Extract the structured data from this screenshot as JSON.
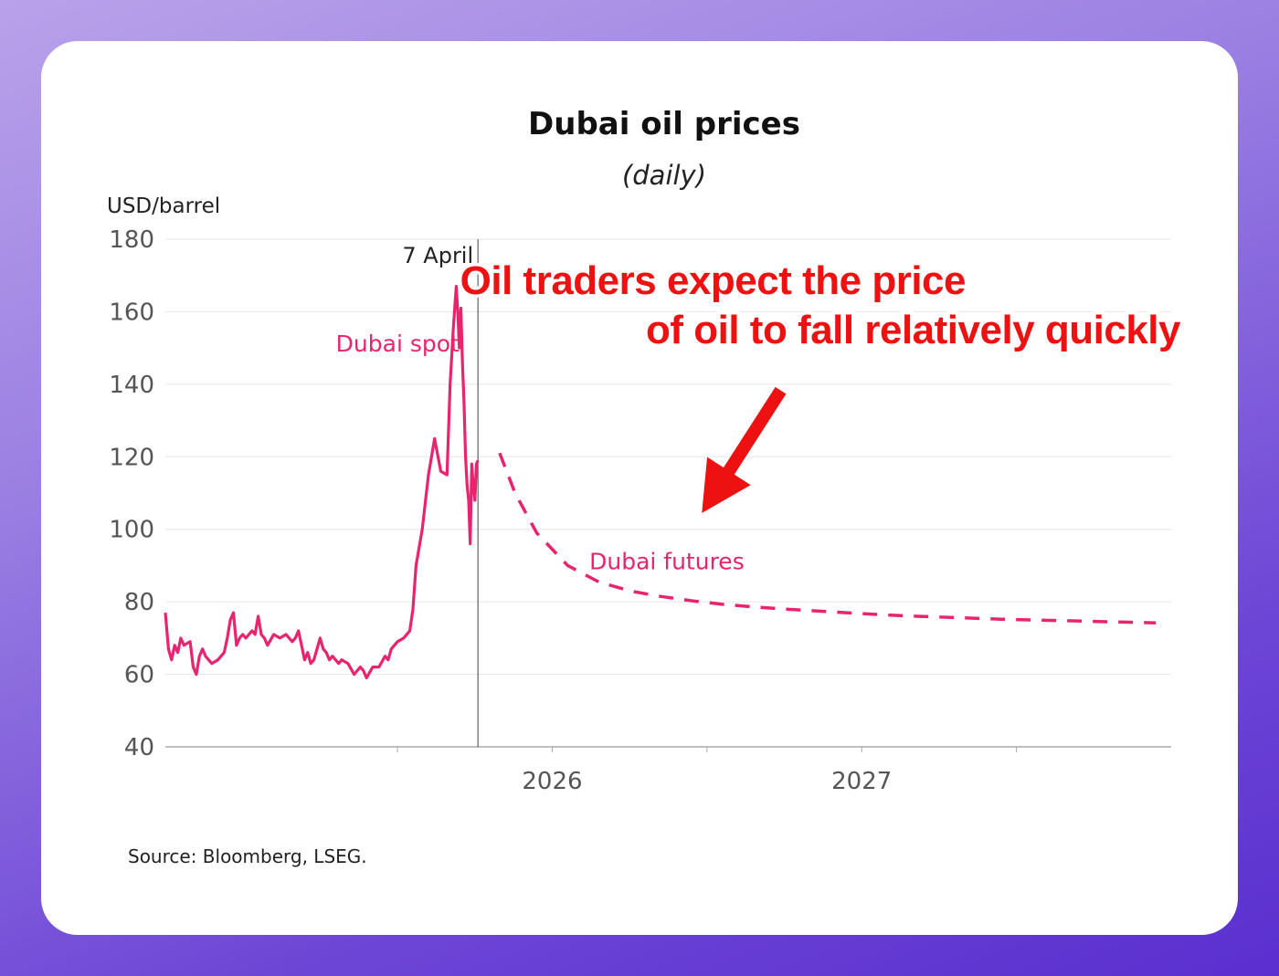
{
  "chart_data": {
    "type": "line",
    "title": "Dubai oil prices",
    "subtitle": "(daily)",
    "ylabel": "USD/barrel",
    "ylim": [
      40,
      180
    ],
    "yticks": [
      40,
      60,
      80,
      100,
      120,
      140,
      160,
      180
    ],
    "xlim": [
      2024.75,
      2028.0
    ],
    "xticks": [
      {
        "value": 2025.5,
        "label": ""
      },
      {
        "value": 2026.0,
        "label": "2026"
      },
      {
        "value": 2026.5,
        "label": ""
      },
      {
        "value": 2027.0,
        "label": "2027"
      },
      {
        "value": 2027.5,
        "label": ""
      }
    ],
    "grid": true,
    "marker": {
      "label": "7 April",
      "x": 2025.76
    },
    "series": [
      {
        "name": "Dubai spot",
        "style": "solid",
        "color": "#e8246e",
        "x": [
          2024.75,
          2024.76,
          2024.77,
          2024.78,
          2024.79,
          2024.8,
          2024.81,
          2024.83,
          2024.84,
          2024.85,
          2024.86,
          2024.87,
          2024.88,
          2024.89,
          2024.9,
          2024.92,
          2024.94,
          2024.95,
          2024.96,
          2024.97,
          2024.98,
          2024.99,
          2025.0,
          2025.01,
          2025.02,
          2025.03,
          2025.04,
          2025.05,
          2025.06,
          2025.07,
          2025.08,
          2025.1,
          2025.12,
          2025.14,
          2025.16,
          2025.17,
          2025.18,
          2025.19,
          2025.2,
          2025.21,
          2025.22,
          2025.23,
          2025.25,
          2025.26,
          2025.27,
          2025.28,
          2025.29,
          2025.3,
          2025.31,
          2025.32,
          2025.34,
          2025.36,
          2025.38,
          2025.39,
          2025.4,
          2025.42,
          2025.44,
          2025.46,
          2025.47,
          2025.48,
          2025.5,
          2025.52,
          2025.54,
          2025.55,
          2025.56,
          2025.58,
          2025.6,
          2025.62,
          2025.64,
          2025.66,
          2025.67,
          2025.68,
          2025.69,
          2025.695,
          2025.7,
          2025.705,
          2025.71,
          2025.715,
          2025.72,
          2025.725,
          2025.73,
          2025.735,
          2025.74,
          2025.745,
          2025.75,
          2025.755,
          2025.76
        ],
        "y": [
          77,
          67,
          64,
          68,
          66,
          70,
          68,
          69,
          62,
          60,
          65,
          67,
          65,
          64,
          63,
          64,
          66,
          70,
          75,
          77,
          68,
          70,
          71,
          70,
          71,
          72,
          71,
          76,
          71,
          70,
          68,
          71,
          70,
          71,
          69,
          70,
          72,
          68,
          64,
          66,
          63,
          64,
          70,
          67,
          66,
          64,
          65,
          64,
          63,
          64,
          63,
          60,
          62,
          61,
          59,
          62,
          62,
          65,
          64,
          67,
          69,
          70,
          72,
          78,
          90,
          100,
          115,
          125,
          116,
          115,
          140,
          155,
          167,
          160,
          150,
          161,
          146,
          135,
          120,
          112,
          108,
          96,
          118,
          112,
          108,
          118,
          119
        ]
      },
      {
        "name": "Dubai futures",
        "style": "dashed",
        "color": "#e8246e",
        "x": [
          2025.83,
          2025.88,
          2025.95,
          2026.05,
          2026.15,
          2026.25,
          2026.35,
          2026.45,
          2026.55,
          2026.65,
          2026.75,
          2026.85,
          2026.95,
          2027.05,
          2027.15,
          2027.25,
          2027.35,
          2027.45,
          2027.55,
          2027.65,
          2027.75,
          2027.85,
          2027.95
        ],
        "y": [
          121,
          110,
          99,
          90,
          85.5,
          83,
          81.5,
          80.3,
          79.3,
          78.6,
          78,
          77.5,
          77,
          76.5,
          76.1,
          75.8,
          75.5,
          75.2,
          75,
          74.8,
          74.6,
          74.4,
          74.2
        ]
      }
    ],
    "annotations": [
      {
        "text": "Dubai spot",
        "x": 2025.7,
        "y": 149,
        "anchor": "end"
      },
      {
        "text": "Dubai futures",
        "x": 2026.12,
        "y": 89,
        "anchor": "start"
      }
    ],
    "callout": {
      "lines": [
        "Oil traders expect the price",
        "of oil to fall relatively quickly"
      ],
      "color": "#ee1111",
      "arrow_tail": {
        "x": 2026.74,
        "y": 138.5
      },
      "arrow_head": {
        "x": 2026.48,
        "y": 104
      }
    },
    "source": "Source: Bloomberg, LSEG."
  }
}
